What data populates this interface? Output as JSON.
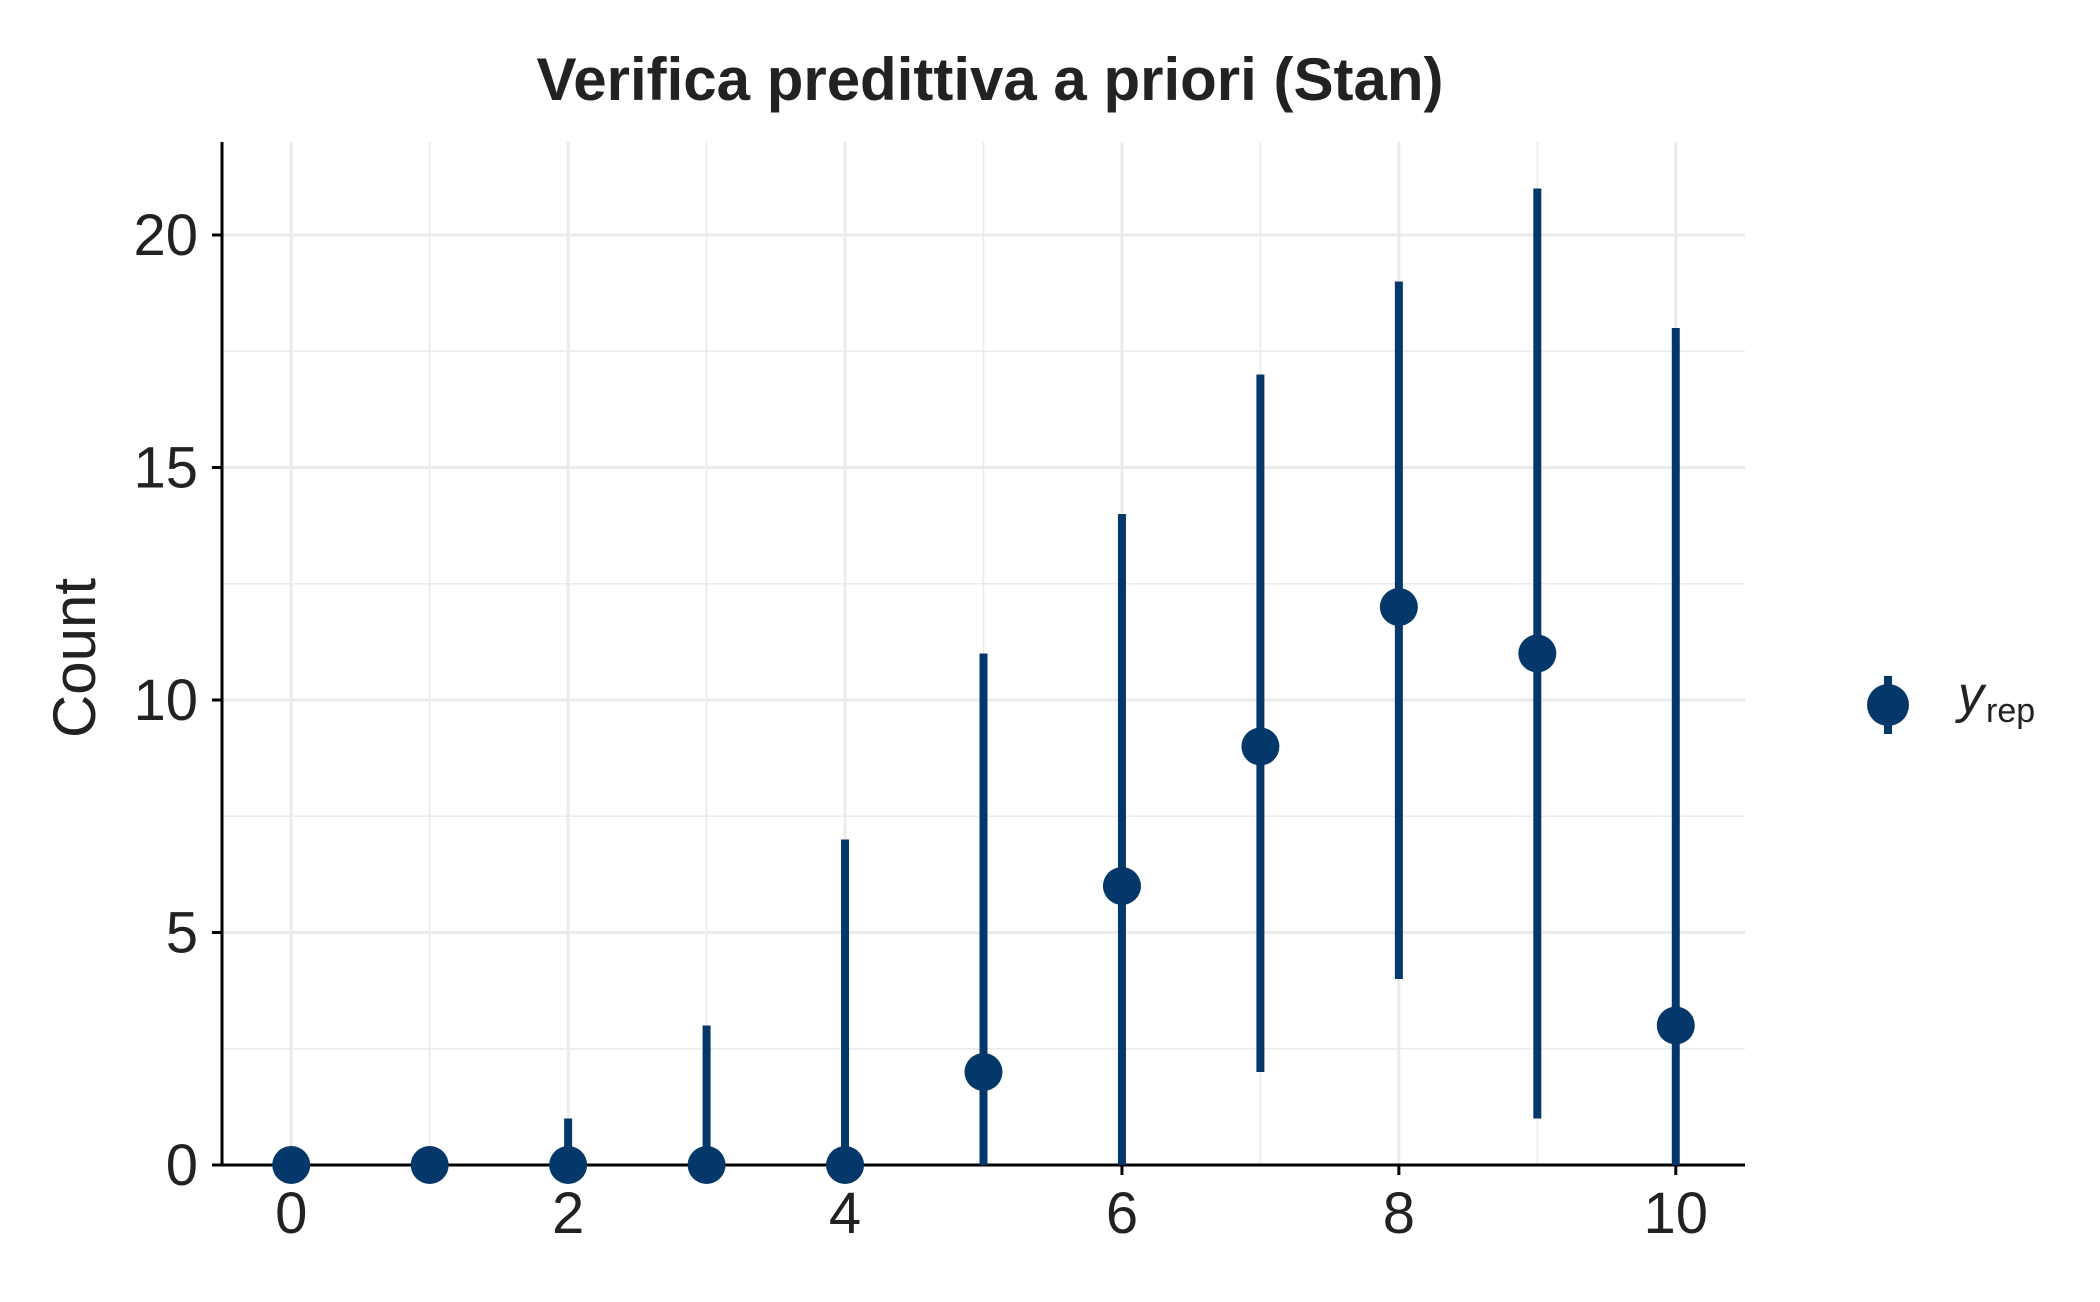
{
  "chart_data": {
    "type": "scatter",
    "title": "Verifica predittiva a priori (Stan)",
    "xlabel": "",
    "ylabel": "Count",
    "xlim": [
      -0.5,
      10.5
    ],
    "ylim": [
      0,
      22
    ],
    "x_ticks": [
      0,
      2,
      4,
      6,
      8,
      10
    ],
    "y_ticks": [
      0,
      5,
      10,
      15,
      20
    ],
    "grid": true,
    "legend_position": "right",
    "colors": {
      "series": "#04386b",
      "grid": "#ebebeb",
      "axis": "#000000"
    },
    "series": [
      {
        "name_main": "y",
        "name_sub": "rep",
        "x": [
          0,
          1,
          2,
          3,
          4,
          5,
          6,
          7,
          8,
          9,
          10
        ],
        "y": [
          0,
          0,
          0,
          0,
          0,
          2,
          6,
          9,
          12,
          11,
          3
        ],
        "lower": [
          0,
          0,
          0,
          0,
          0,
          0,
          0,
          2,
          4,
          1,
          0
        ],
        "upper": [
          0,
          0,
          1,
          3,
          7,
          11,
          14,
          17,
          19,
          21,
          18
        ]
      }
    ]
  }
}
